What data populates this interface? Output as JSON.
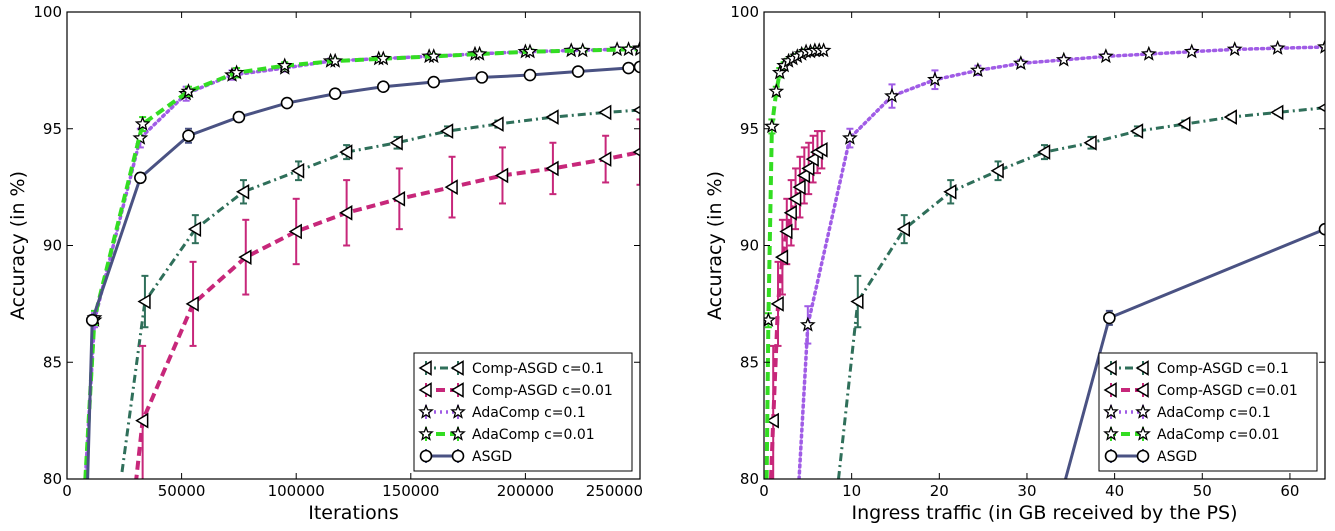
{
  "chart_data": [
    {
      "type": "line",
      "xlabel": "Iterations",
      "ylabel": "Accuracy (in %)",
      "xlim": [
        0,
        250000
      ],
      "ylim": [
        80,
        100
      ],
      "xticks": [
        0,
        50000,
        100000,
        150000,
        200000,
        250000
      ],
      "yticks": [
        80,
        85,
        90,
        95,
        100
      ],
      "xtick_labels": [
        "0",
        "50000",
        "100000",
        "150000",
        "200000",
        "250000"
      ],
      "ytick_labels": [
        "80",
        "85",
        "90",
        "95",
        "100"
      ],
      "legend_position": "lower-right",
      "legend": [
        "Comp-ASGD c=0.1",
        "Comp-ASGD c=0.01",
        "AdaComp c=0.1",
        "AdaComp c=0.01",
        "ASGD"
      ],
      "series": [
        {
          "name": "Comp-ASGD c=0.1",
          "color": "#2f6f5a",
          "line": "dashdot",
          "marker": "triangle-left",
          "x": [
            24000,
            34000,
            56000,
            77000,
            101000,
            122000,
            144000,
            166000,
            188000,
            212000,
            235000,
            250000
          ],
          "y": [
            80.3,
            87.6,
            90.7,
            92.3,
            93.2,
            94.0,
            94.4,
            94.9,
            95.2,
            95.5,
            95.7,
            95.8
          ],
          "err": [
            0,
            1.1,
            0.6,
            0.5,
            0.4,
            0.3,
            0.25,
            0.2,
            0.15,
            0.1,
            0.08,
            0
          ]
        },
        {
          "name": "Comp-ASGD c=0.01",
          "color": "#c7277a",
          "line": "dashed",
          "marker": "triangle-left",
          "x": [
            30000,
            33000,
            55000,
            78000,
            100000,
            122000,
            145000,
            168000,
            190000,
            212000,
            235000,
            250000
          ],
          "y": [
            79.8,
            82.5,
            87.5,
            89.5,
            90.6,
            91.4,
            92.0,
            92.5,
            93.0,
            93.3,
            93.7,
            94.0
          ],
          "err": [
            0,
            3.2,
            1.8,
            1.6,
            1.4,
            1.4,
            1.3,
            1.3,
            1.2,
            1.1,
            1.0,
            1.4
          ]
        },
        {
          "name": "AdaComp c=0.1",
          "color": "#a05ce6",
          "line": "dotted",
          "marker": "star",
          "x": [
            8000,
            12000,
            32000,
            52000,
            72000,
            95000,
            115000,
            136000,
            158000,
            178000,
            200000,
            220000,
            240000,
            250000
          ],
          "y": [
            80.0,
            86.8,
            94.6,
            96.5,
            97.3,
            97.6,
            97.9,
            98.0,
            98.1,
            98.2,
            98.3,
            98.35,
            98.4,
            98.45
          ],
          "err": [
            0,
            0.3,
            0.4,
            0.3,
            0.2,
            0.15,
            0.1,
            0.1,
            0.1,
            0.1,
            0.1,
            0.1,
            0.1,
            0
          ]
        },
        {
          "name": "AdaComp c=0.01",
          "color": "#33dd22",
          "line": "dashed",
          "marker": "star",
          "x": [
            8000,
            12000,
            33000,
            53000,
            74000,
            95000,
            117000,
            138000,
            160000,
            180000,
            202000,
            225000,
            245000,
            250000
          ],
          "y": [
            80.0,
            86.9,
            95.2,
            96.6,
            97.4,
            97.7,
            97.9,
            98.0,
            98.1,
            98.2,
            98.3,
            98.35,
            98.4,
            98.4
          ],
          "err": [
            0,
            0.3,
            0.3,
            0.2,
            0.2,
            0.15,
            0.1,
            0.1,
            0.1,
            0.1,
            0.1,
            0.1,
            0.1,
            0
          ]
        },
        {
          "name": "ASGD",
          "color": "#4a5283",
          "line": "solid",
          "marker": "circle",
          "x": [
            9000,
            11000,
            32000,
            53000,
            75000,
            96000,
            117000,
            138000,
            160000,
            181000,
            202000,
            223000,
            245000,
            250000
          ],
          "y": [
            80.0,
            86.8,
            92.9,
            94.7,
            95.5,
            96.1,
            96.5,
            96.8,
            97.0,
            97.2,
            97.3,
            97.45,
            97.6,
            97.65
          ],
          "err": [
            0,
            0.2,
            0.2,
            0.3,
            0.2,
            0.15,
            0.1,
            0.1,
            0.1,
            0.1,
            0.1,
            0.1,
            0.1,
            0
          ]
        }
      ]
    },
    {
      "type": "line",
      "xlabel": "Ingress traffic (in GB received by the PS)",
      "ylabel": "Accuracy (in %)",
      "xlim": [
        0,
        64
      ],
      "ylim": [
        80,
        100
      ],
      "xticks": [
        0,
        10,
        20,
        30,
        40,
        50,
        60
      ],
      "yticks": [
        80,
        85,
        90,
        95,
        100
      ],
      "xtick_labels": [
        "0",
        "10",
        "20",
        "30",
        "40",
        "50",
        "60"
      ],
      "ytick_labels": [
        "80",
        "85",
        "90",
        "95",
        "100"
      ],
      "legend_position": "lower-right",
      "legend": [
        "Comp-ASGD c=0.1",
        "Comp-ASGD c=0.01",
        "AdaComp c=0.1",
        "AdaComp c=0.01",
        "ASGD"
      ],
      "series": [
        {
          "name": "Comp-ASGD c=0.1",
          "color": "#2f6f5a",
          "line": "dashdot",
          "marker": "triangle-left",
          "x": [
            8.5,
            10.7,
            16.0,
            21.3,
            26.7,
            32.0,
            37.3,
            42.6,
            48.0,
            53.3,
            58.6,
            64.0
          ],
          "y": [
            80.0,
            87.6,
            90.7,
            92.3,
            93.2,
            94.0,
            94.4,
            94.9,
            95.2,
            95.5,
            95.7,
            95.9
          ],
          "err": [
            0,
            1.1,
            0.6,
            0.5,
            0.4,
            0.3,
            0.25,
            0.2,
            0.15,
            0.1,
            0.08,
            0
          ]
        },
        {
          "name": "Comp-ASGD c=0.01",
          "color": "#c7277a",
          "line": "dashed",
          "marker": "triangle-left",
          "x": [
            0.8,
            1.05,
            1.6,
            2.1,
            2.6,
            3.1,
            3.6,
            4.1,
            4.6,
            5.1,
            5.6,
            6.1,
            6.6
          ],
          "y": [
            80.0,
            82.5,
            87.5,
            89.5,
            90.6,
            91.4,
            92.0,
            92.5,
            93.0,
            93.3,
            93.7,
            94.0,
            94.1
          ],
          "err": [
            0,
            3.2,
            1.8,
            1.6,
            1.4,
            1.4,
            1.3,
            1.3,
            1.2,
            1.1,
            1.0,
            0.9,
            0.8
          ]
        },
        {
          "name": "AdaComp c=0.1",
          "color": "#a05ce6",
          "line": "dotted",
          "marker": "star",
          "x": [
            4.0,
            5.0,
            9.8,
            14.6,
            19.5,
            24.4,
            29.3,
            34.2,
            39.0,
            43.9,
            48.8,
            53.7,
            58.6,
            64.0
          ],
          "y": [
            80.0,
            86.6,
            94.6,
            96.4,
            97.1,
            97.5,
            97.8,
            97.95,
            98.1,
            98.2,
            98.3,
            98.4,
            98.45,
            98.5
          ],
          "err": [
            0,
            0.8,
            0.4,
            0.5,
            0.4,
            0.2,
            0.15,
            0.1,
            0.1,
            0.1,
            0.1,
            0.1,
            0.1,
            0
          ]
        },
        {
          "name": "AdaComp c=0.01",
          "color": "#33dd22",
          "line": "dashed",
          "marker": "star",
          "x": [
            0.3,
            0.5,
            0.9,
            1.4,
            1.8,
            2.3,
            2.8,
            3.3,
            3.8,
            4.3,
            4.8,
            5.3,
            5.8,
            6.3,
            6.8
          ],
          "y": [
            80.0,
            86.8,
            95.1,
            96.6,
            97.4,
            97.7,
            97.9,
            98.0,
            98.1,
            98.2,
            98.3,
            98.3,
            98.35,
            98.35,
            98.35
          ],
          "err": [
            0,
            0.3,
            0.3,
            0.2,
            0.2,
            0.15,
            0.1,
            0.1,
            0.1,
            0.1,
            0.1,
            0.1,
            0.1,
            0.1,
            0
          ]
        },
        {
          "name": "ASGD",
          "color": "#4a5283",
          "line": "solid",
          "marker": "circle",
          "x": [
            34.4,
            39.4,
            64.0
          ],
          "y": [
            80.0,
            86.9,
            90.7
          ],
          "err": [
            0,
            0.3,
            0
          ]
        }
      ]
    }
  ]
}
